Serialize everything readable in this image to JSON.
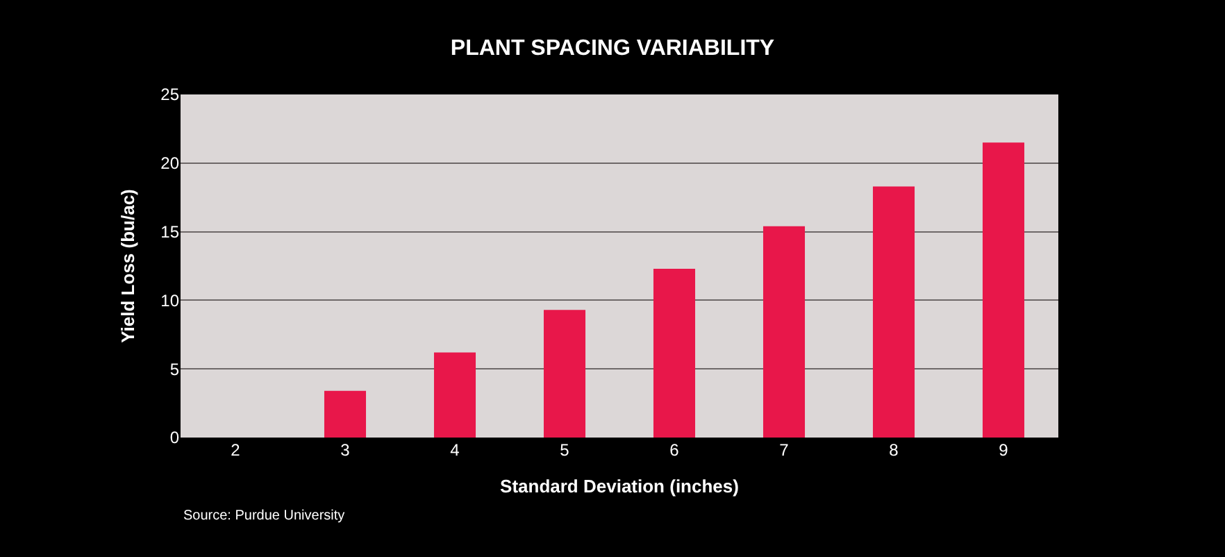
{
  "chart_data": {
    "type": "bar",
    "title": "PLANT SPACING VARIABILITY",
    "xlabel": "Standard Deviation (inches)",
    "ylabel": "Yield Loss (bu/ac)",
    "categories": [
      "2",
      "3",
      "4",
      "5",
      "6",
      "7",
      "8",
      "9"
    ],
    "values": [
      0,
      3.4,
      6.2,
      9.3,
      12.3,
      15.4,
      18.3,
      21.5
    ],
    "color": "#e8174a",
    "ylim": [
      0,
      25
    ],
    "yticks": [
      0,
      5,
      10,
      15,
      20,
      25
    ],
    "grid": "y",
    "annotations": [
      "Source: Purdue University"
    ]
  }
}
